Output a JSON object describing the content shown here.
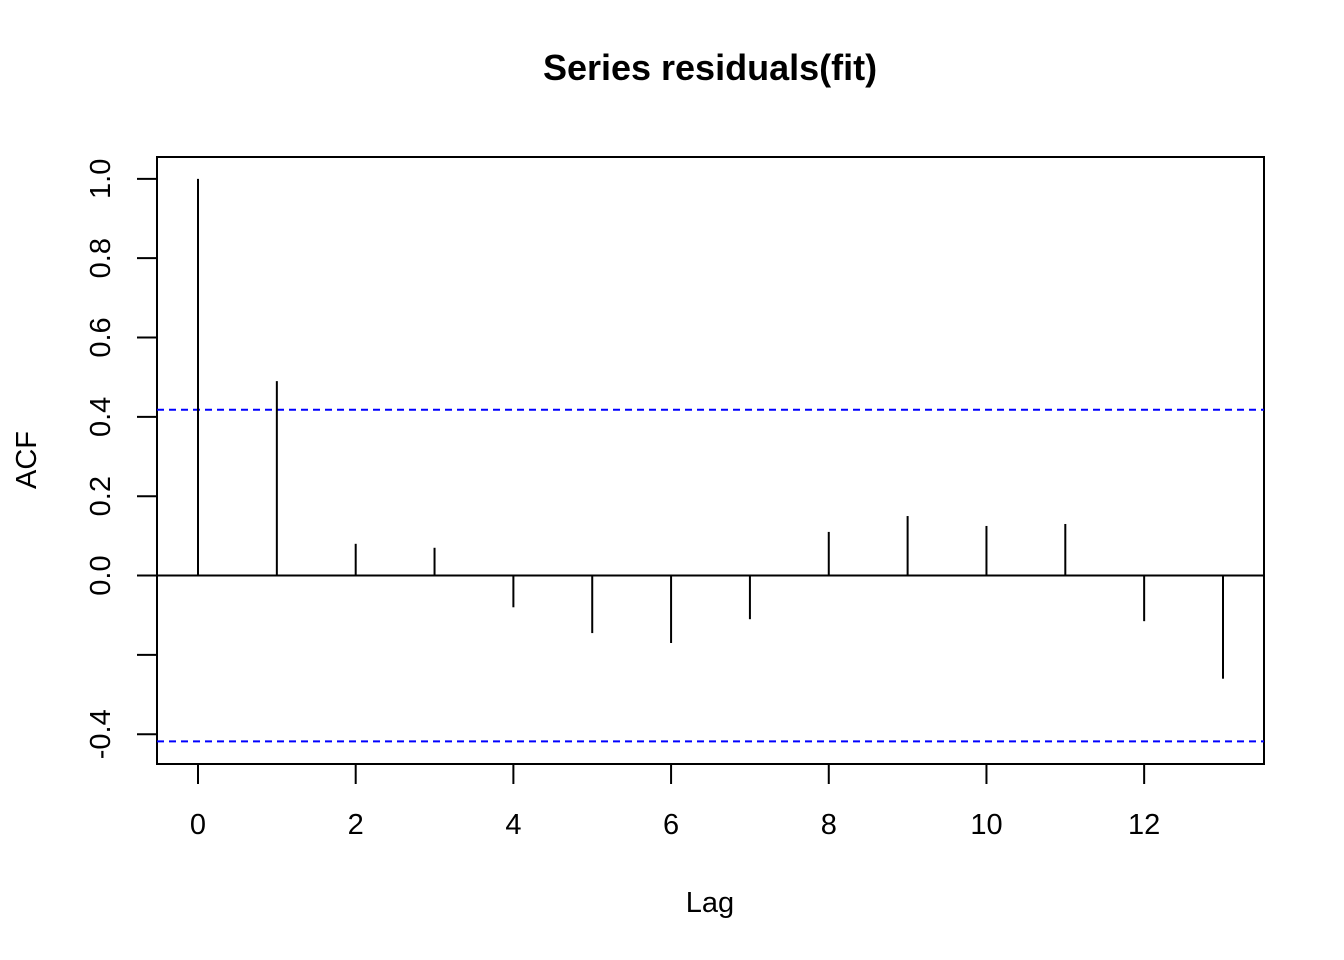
{
  "chart_data": {
    "type": "bar",
    "title": "Series  residuals(fit)",
    "xlabel": "Lag",
    "ylabel": "ACF",
    "x": [
      0,
      1,
      2,
      3,
      4,
      5,
      6,
      7,
      8,
      9,
      10,
      11,
      12,
      13
    ],
    "values": [
      1.0,
      0.49,
      0.08,
      0.07,
      -0.08,
      -0.145,
      -0.17,
      -0.11,
      0.11,
      0.15,
      0.125,
      0.13,
      -0.115,
      -0.26
    ],
    "confidence_bound": 0.418,
    "xlim": [
      -0.52,
      13.52
    ],
    "ylim": [
      -0.475,
      1.055
    ],
    "x_ticks": [
      0,
      2,
      4,
      6,
      8,
      10,
      12
    ],
    "y_ticks": [
      -0.4,
      -0.2,
      0.0,
      0.2,
      0.4,
      0.6,
      0.8,
      1.0
    ],
    "y_tick_labels": [
      "-0.4",
      "",
      "0.0",
      "0.2",
      "0.4",
      "0.6",
      "0.8",
      "1.0"
    ],
    "colors": {
      "bars": "#000000",
      "confidence": "#0000ff",
      "zero_line": "#000000"
    }
  }
}
